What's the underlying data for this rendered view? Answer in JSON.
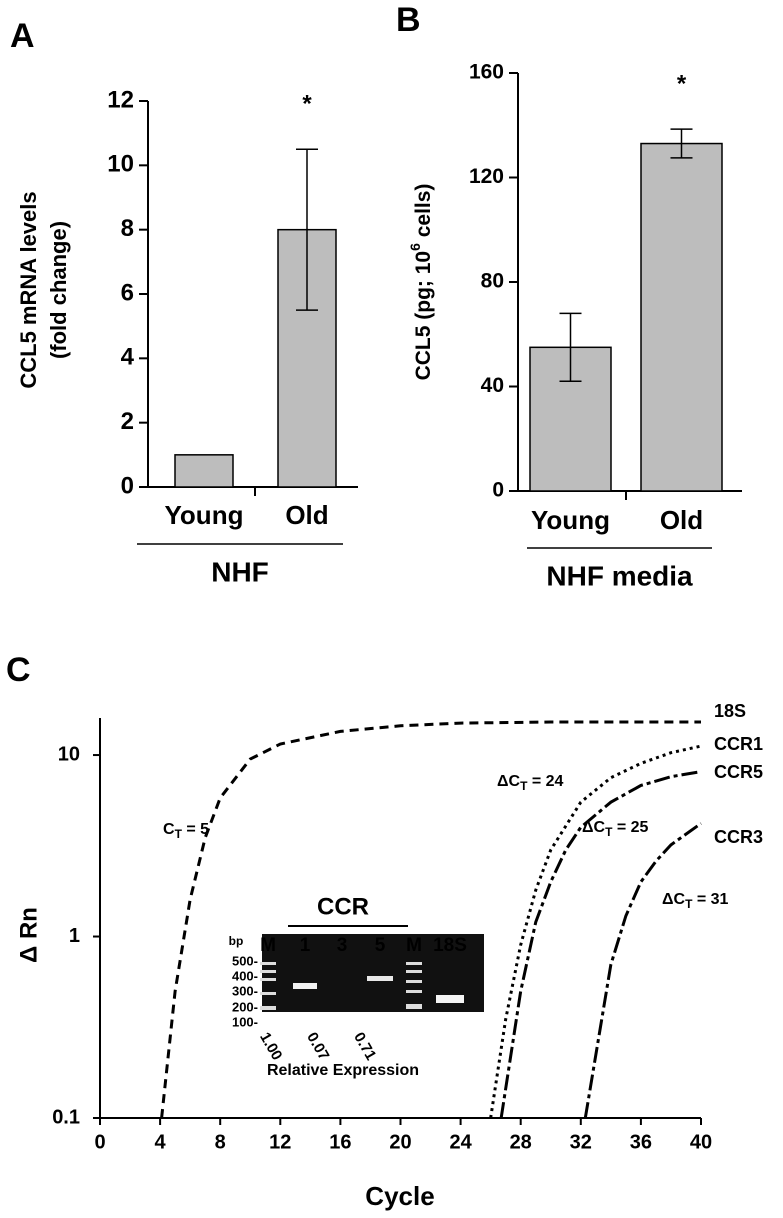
{
  "chart_data": [
    {
      "type": "bar",
      "panel_label": "A",
      "ylabel": [
        "CCL5 mRNA levels",
        "(fold change)"
      ],
      "categories": [
        "Young",
        "Old"
      ],
      "values": [
        1,
        8
      ],
      "errors": [
        null,
        2.5
      ],
      "significance": [
        null,
        "*"
      ],
      "group_label": "NHF",
      "color": "#bdbdbd",
      "ylim": [
        0,
        12
      ],
      "yticks": [
        0,
        2,
        4,
        6,
        8,
        10,
        12
      ]
    },
    {
      "type": "bar",
      "panel_label": "B",
      "ylabel": {
        "text": "CCL5 (pg; 10",
        "sup": "6",
        "after": " cells)"
      },
      "categories": [
        "Young",
        "Old"
      ],
      "values": [
        55,
        133
      ],
      "errors": [
        13,
        5.5
      ],
      "significance": [
        null,
        "*"
      ],
      "group_label": "NHF media",
      "color": "#bdbdbd",
      "ylim": [
        0,
        160
      ],
      "yticks": [
        0,
        40,
        80,
        120,
        160
      ]
    },
    {
      "type": "line",
      "panel_label": "C",
      "xlabel": "Cycle",
      "ylabel": "Δ Rn",
      "log_y": true,
      "xlim": [
        0,
        40
      ],
      "xticks": [
        0,
        4,
        8,
        12,
        16,
        20,
        24,
        28,
        32,
        36,
        40
      ],
      "ylim": [
        0.1,
        16
      ],
      "yticks": [
        0.1,
        1,
        10
      ],
      "series": [
        {
          "name": "18S",
          "color": "#000000",
          "line_style": "dashed",
          "x": [
            4.1,
            5,
            6,
            7,
            8,
            10,
            12,
            16,
            20,
            24,
            30,
            40
          ],
          "values": [
            0.1,
            0.5,
            1.6,
            3.5,
            5.8,
            9.5,
            11.5,
            13.5,
            14.5,
            15,
            15.2,
            15.2
          ]
        },
        {
          "name": "CCR1",
          "color": "#000000",
          "line_style": "dotted",
          "x": [
            26,
            27,
            28,
            29,
            30,
            32,
            34,
            36,
            38,
            40
          ],
          "values": [
            0.1,
            0.35,
            0.9,
            1.8,
            3,
            5.5,
            7.5,
            9,
            10.3,
            11.2
          ]
        },
        {
          "name": "CCR5",
          "color": "#000000",
          "line_style": "dashdot",
          "x": [
            26.7,
            28,
            29,
            30,
            31,
            32,
            34,
            36,
            38,
            40
          ],
          "values": [
            0.1,
            0.5,
            1.2,
            2,
            3,
            4,
            5.5,
            6.8,
            7.6,
            8.1
          ]
        },
        {
          "name": "CCR3",
          "color": "#000000",
          "line_style": "dashdot",
          "x": [
            32.3,
            34,
            35,
            36,
            37,
            38,
            40
          ],
          "values": [
            0.1,
            0.7,
            1.3,
            2,
            2.6,
            3.2,
            4.2
          ]
        }
      ],
      "annotations": [
        {
          "text": "C",
          "sub": "T",
          "after": " = 5"
        },
        {
          "text": "ΔC",
          "sub": "T",
          "after": " = 24"
        },
        {
          "text": "ΔC",
          "sub": "T",
          "after": " = 25"
        },
        {
          "text": "ΔC",
          "sub": "T",
          "after": " = 31"
        }
      ],
      "inset": {
        "title": "CCR",
        "bp_label": "bp",
        "lanes": [
          "M",
          "1",
          "3",
          "5",
          "M",
          "18S"
        ],
        "size_markers": [
          "500-",
          "400-",
          "300-",
          "200-",
          "100-"
        ],
        "relative_expression_label": "Relative Expression",
        "relative_expression": [
          "1.00",
          "0.07",
          "0.71"
        ]
      }
    }
  ]
}
